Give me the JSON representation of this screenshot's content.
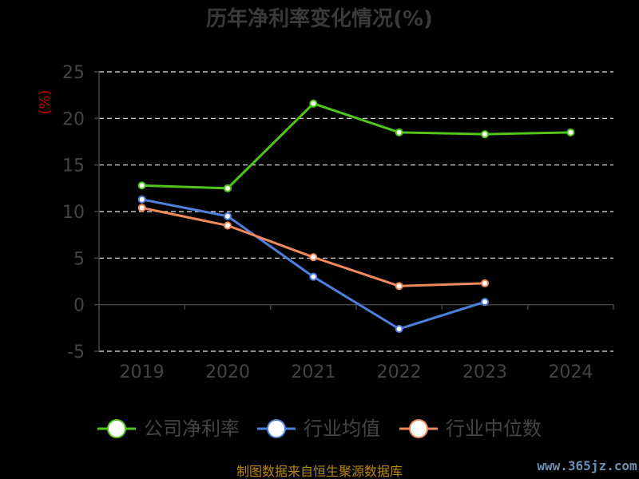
{
  "chart_data": {
    "type": "line",
    "title": "历年净利率变化情况(%)",
    "unit_label": "(%)",
    "categories": [
      "2019",
      "2020",
      "2021",
      "2022",
      "2023",
      "2024"
    ],
    "y_ticks": [
      "25",
      "20",
      "15",
      "10",
      "5",
      "0",
      "-5"
    ],
    "ylim": [
      -5,
      25
    ],
    "grid": true,
    "legend_position": "bottom",
    "series": [
      {
        "name": "公司净利率",
        "color": "#52c41a",
        "values": [
          12.8,
          12.5,
          21.6,
          18.5,
          18.3,
          18.5
        ]
      },
      {
        "name": "行业均值",
        "color": "#4f7fdb",
        "values": [
          11.3,
          9.5,
          3.0,
          -2.6,
          0.3,
          null
        ]
      },
      {
        "name": "行业中位数",
        "color": "#f08a5d",
        "values": [
          10.4,
          8.5,
          5.1,
          2.0,
          2.3,
          null
        ]
      }
    ]
  },
  "footer": {
    "source": "制图数据来自恒生聚源数据库",
    "watermark": "www.365jz.com"
  }
}
